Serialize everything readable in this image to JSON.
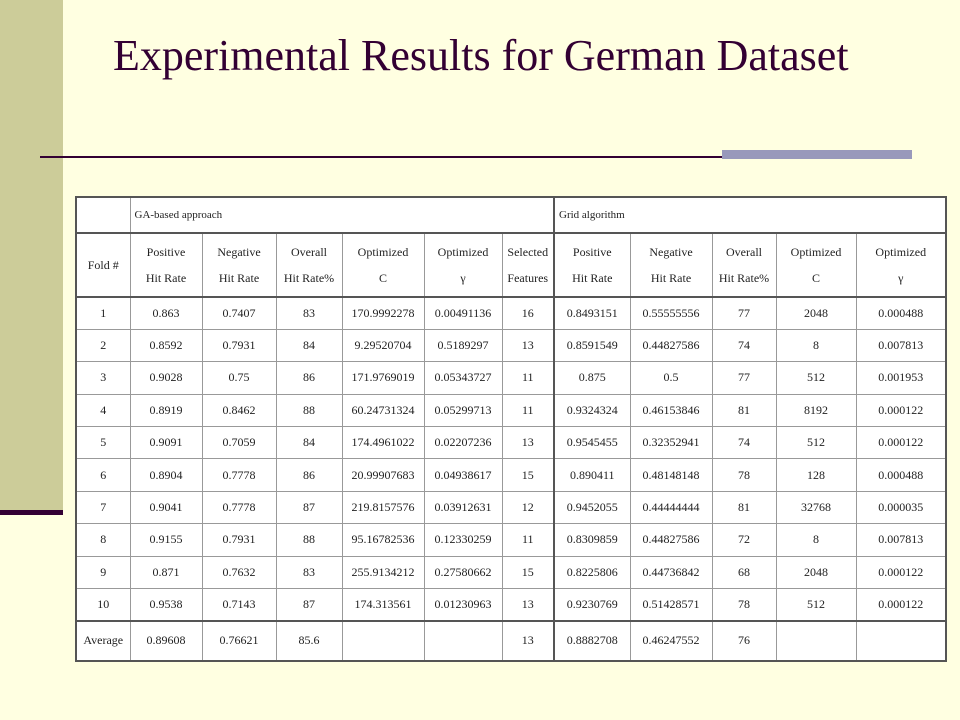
{
  "title": "Experimental Results for German Dataset",
  "table": {
    "groups": [
      "GA-based approach",
      "Grid algorithm"
    ],
    "fold_header": "Fold #",
    "ga_headers": [
      [
        "Positive",
        "Hit Rate"
      ],
      [
        "Negative",
        "Hit Rate"
      ],
      [
        "Overall",
        "Hit Rate%"
      ],
      [
        "Optimized",
        "C"
      ],
      [
        "Optimized",
        "γ"
      ],
      [
        "Selected",
        "Features"
      ]
    ],
    "grid_headers": [
      [
        "Positive",
        "Hit Rate"
      ],
      [
        "Negative",
        "Hit Rate"
      ],
      [
        "Overall",
        "Hit Rate%"
      ],
      [
        "Optimized",
        "C"
      ],
      [
        "Optimized",
        "γ"
      ]
    ],
    "rows": [
      [
        "1",
        "0.863",
        "0.7407",
        "83",
        "170.9992278",
        "0.00491136",
        "16",
        "0.8493151",
        "0.55555556",
        "77",
        "2048",
        "0.000488"
      ],
      [
        "2",
        "0.8592",
        "0.7931",
        "84",
        "9.29520704",
        "0.5189297",
        "13",
        "0.8591549",
        "0.44827586",
        "74",
        "8",
        "0.007813"
      ],
      [
        "3",
        "0.9028",
        "0.75",
        "86",
        "171.9769019",
        "0.05343727",
        "11",
        "0.875",
        "0.5",
        "77",
        "512",
        "0.001953"
      ],
      [
        "4",
        "0.8919",
        "0.8462",
        "88",
        "60.24731324",
        "0.05299713",
        "11",
        "0.9324324",
        "0.46153846",
        "81",
        "8192",
        "0.000122"
      ],
      [
        "5",
        "0.9091",
        "0.7059",
        "84",
        "174.4961022",
        "0.02207236",
        "13",
        "0.9545455",
        "0.32352941",
        "74",
        "512",
        "0.000122"
      ],
      [
        "6",
        "0.8904",
        "0.7778",
        "86",
        "20.99907683",
        "0.04938617",
        "15",
        "0.890411",
        "0.48148148",
        "78",
        "128",
        "0.000488"
      ],
      [
        "7",
        "0.9041",
        "0.7778",
        "87",
        "219.8157576",
        "0.03912631",
        "12",
        "0.9452055",
        "0.44444444",
        "81",
        "32768",
        "0.000035"
      ],
      [
        "8",
        "0.9155",
        "0.7931",
        "88",
        "95.16782536",
        "0.12330259",
        "11",
        "0.8309859",
        "0.44827586",
        "72",
        "8",
        "0.007813"
      ],
      [
        "9",
        "0.871",
        "0.7632",
        "83",
        "255.9134212",
        "0.27580662",
        "15",
        "0.8225806",
        "0.44736842",
        "68",
        "2048",
        "0.000122"
      ],
      [
        "10",
        "0.9538",
        "0.7143",
        "87",
        "174.313561",
        "0.01230963",
        "13",
        "0.9230769",
        "0.51428571",
        "78",
        "512",
        "0.000122"
      ]
    ],
    "average": [
      "Average",
      "0.89608",
      "0.76621",
      "85.6",
      "",
      "",
      "13",
      "0.8882708",
      "0.46247552",
      "76",
      "",
      ""
    ]
  }
}
